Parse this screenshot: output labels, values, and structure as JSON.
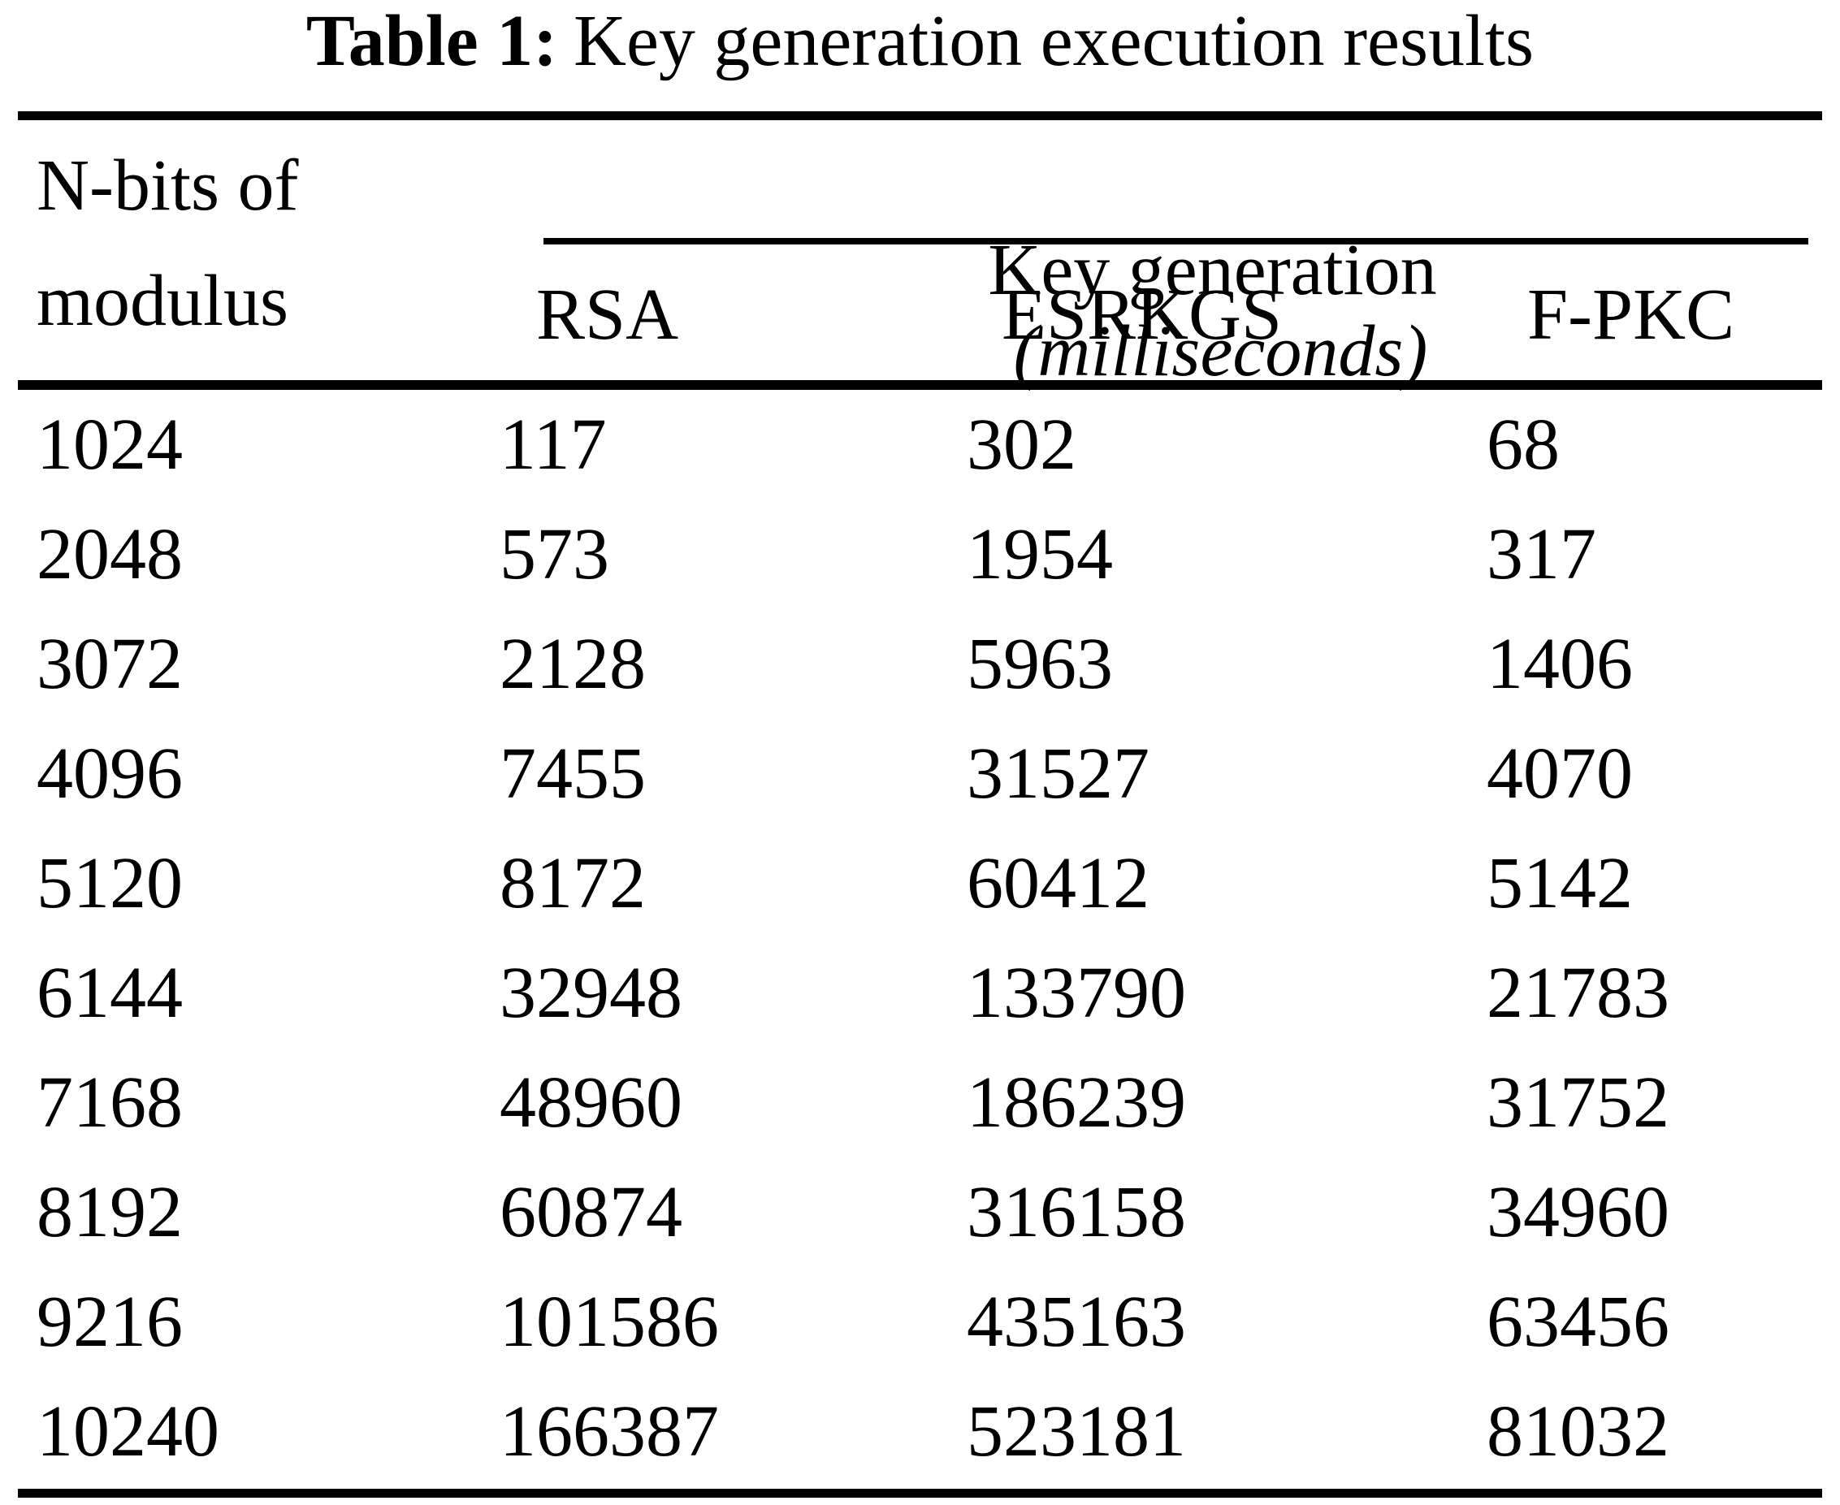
{
  "table": {
    "title_bold": "Table 1:",
    "title_rest": "Key generation execution results",
    "row_header_line1": "N-bits of",
    "row_header_line2": "modulus",
    "col_group_main": "Key generation",
    "col_group_unit": "(milliseconds)",
    "columns": [
      "RSA",
      "ESRKGS",
      "F-PKC"
    ],
    "rows": [
      {
        "n_bits": "1024",
        "rsa": "117",
        "esrkgs": "302",
        "f_pkc": "68"
      },
      {
        "n_bits": "2048",
        "rsa": "573",
        "esrkgs": "1954",
        "f_pkc": "317"
      },
      {
        "n_bits": "3072",
        "rsa": "2128",
        "esrkgs": "5963",
        "f_pkc": "1406"
      },
      {
        "n_bits": "4096",
        "rsa": "7455",
        "esrkgs": "31527",
        "f_pkc": "4070"
      },
      {
        "n_bits": "5120",
        "rsa": "8172",
        "esrkgs": "60412",
        "f_pkc": "5142"
      },
      {
        "n_bits": "6144",
        "rsa": "32948",
        "esrkgs": "133790",
        "f_pkc": "21783"
      },
      {
        "n_bits": "7168",
        "rsa": "48960",
        "esrkgs": "186239",
        "f_pkc": "31752"
      },
      {
        "n_bits": "8192",
        "rsa": "60874",
        "esrkgs": "316158",
        "f_pkc": "34960"
      },
      {
        "n_bits": "9216",
        "rsa": "101586",
        "esrkgs": "435163",
        "f_pkc": "63456"
      },
      {
        "n_bits": "10240",
        "rsa": "166387",
        "esrkgs": "523181",
        "f_pkc": "81032"
      }
    ]
  },
  "chart_data": {
    "type": "table",
    "title": "Table 1: Key generation execution results",
    "xlabel": "N-bits of modulus",
    "ylabel": "Key generation (milliseconds)",
    "categories": [
      1024,
      2048,
      3072,
      4096,
      5120,
      6144,
      7168,
      8192,
      9216,
      10240
    ],
    "series": [
      {
        "name": "RSA",
        "values": [
          117,
          573,
          2128,
          7455,
          8172,
          32948,
          48960,
          60874,
          101586,
          166387
        ]
      },
      {
        "name": "ESRKGS",
        "values": [
          302,
          1954,
          5963,
          31527,
          60412,
          133790,
          186239,
          316158,
          435163,
          523181
        ]
      },
      {
        "name": "F-PKC",
        "values": [
          68,
          317,
          1406,
          4070,
          5142,
          21783,
          31752,
          34960,
          63456,
          81032
        ]
      }
    ],
    "colors": {
      "ink": "#000000",
      "background": "#ffffff"
    }
  }
}
